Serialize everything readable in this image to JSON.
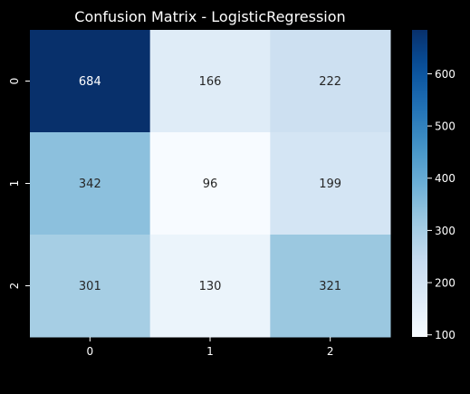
{
  "chart_data": {
    "type": "heatmap",
    "title": "Confusion Matrix - LogisticRegression",
    "xlabel": "",
    "ylabel": "",
    "x_categories": [
      "0",
      "1",
      "2"
    ],
    "y_categories": [
      "0",
      "1",
      "2"
    ],
    "values": [
      [
        684,
        166,
        222
      ],
      [
        342,
        96,
        199
      ],
      [
        301,
        130,
        321
      ]
    ],
    "colormap": "Blues",
    "vmin": 96,
    "vmax": 684,
    "colorbar_ticks": [
      100,
      200,
      300,
      400,
      500,
      600
    ],
    "grid": false
  },
  "colors": {
    "background": "#000000",
    "foreground": "#ffffff",
    "blues_stops": [
      "#f7fbff",
      "#deebf7",
      "#c6dbef",
      "#9ecae1",
      "#6baed6",
      "#4292c6",
      "#2171b5",
      "#08519c",
      "#08306b"
    ]
  }
}
